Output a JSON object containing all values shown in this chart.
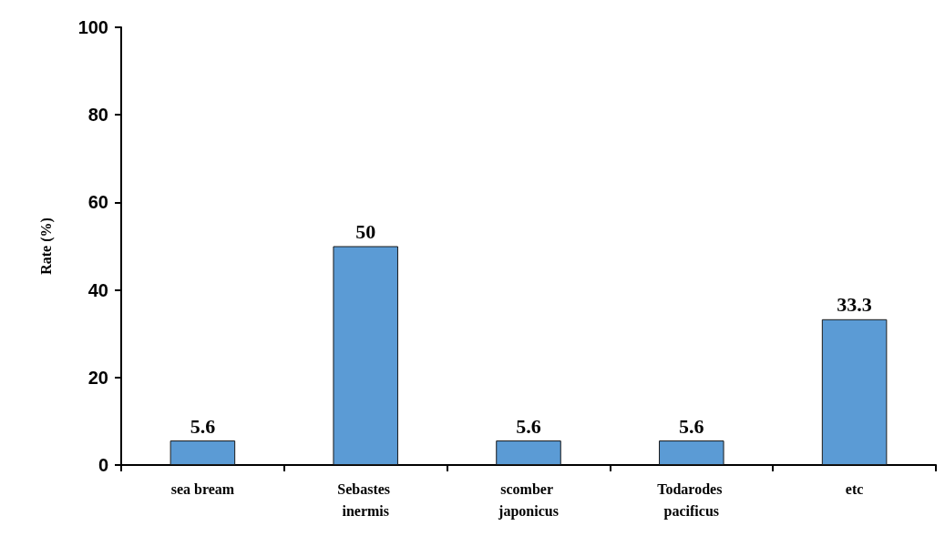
{
  "chart_data": {
    "type": "bar",
    "ylabel": "Rate (%)",
    "categories": [
      "sea bream",
      "Sebastes inermis",
      "scomber japonicus",
      "Todarodes pacificus",
      "etc"
    ],
    "values": [
      5.6,
      50,
      5.6,
      5.6,
      33.3
    ],
    "color": "#5b9bd5",
    "ylim": [
      0,
      100
    ],
    "yticks": [
      0,
      20,
      40,
      60,
      80,
      100
    ],
    "grid": false,
    "data_labels": true
  }
}
